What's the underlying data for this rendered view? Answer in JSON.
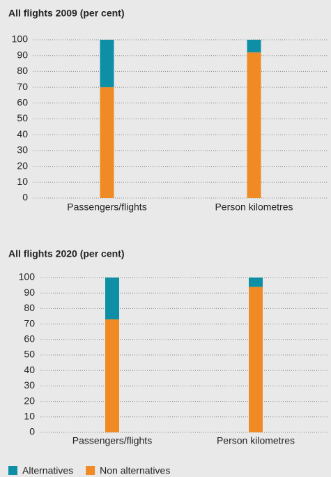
{
  "chart_data": [
    {
      "type": "stacked-bar",
      "title": "All flights 2009 (per cent)",
      "categories": [
        "Passengers/flights",
        "Person kilometres"
      ],
      "series": [
        {
          "name": "Non alternatives",
          "color": "#f08a24",
          "values": [
            70,
            92
          ]
        },
        {
          "name": "Alternatives",
          "color": "#0f8fa6",
          "values": [
            30,
            8
          ]
        }
      ],
      "ylim": [
        0,
        100
      ],
      "yticks": [
        0,
        10,
        20,
        30,
        40,
        50,
        60,
        70,
        80,
        90,
        100
      ],
      "grid": true
    },
    {
      "type": "stacked-bar",
      "title": "All flights 2020 (per cent)",
      "categories": [
        "Passengers/flights",
        "Person kilometres"
      ],
      "series": [
        {
          "name": "Non alternatives",
          "color": "#f08a24",
          "values": [
            73,
            94
          ]
        },
        {
          "name": "Alternatives",
          "color": "#0f8fa6",
          "values": [
            27,
            6
          ]
        }
      ],
      "ylim": [
        0,
        100
      ],
      "yticks": [
        0,
        10,
        20,
        30,
        40,
        50,
        60,
        70,
        80,
        90,
        100
      ],
      "grid": true
    }
  ]
}
